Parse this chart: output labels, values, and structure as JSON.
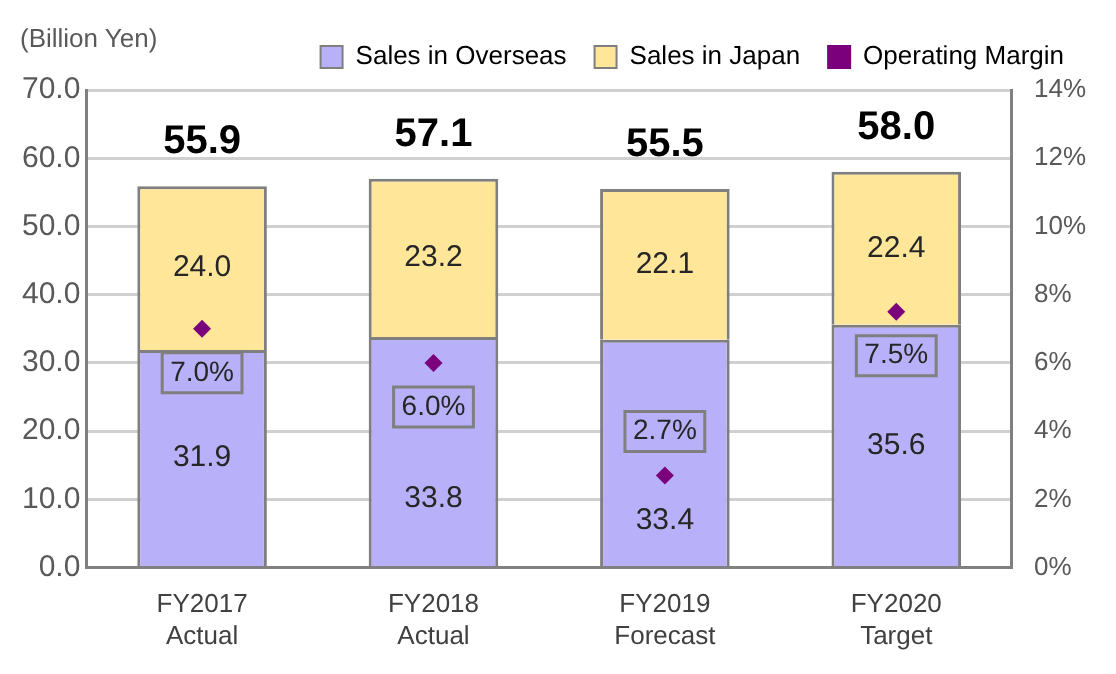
{
  "chart_data": {
    "type": "bar",
    "stacked": true,
    "ylabel": "(Billion Yen)",
    "categories": [
      "FY2017\nActual",
      "FY2018\nActual",
      "FY2019\nForecast",
      "FY2020\nTarget"
    ],
    "series": [
      {
        "name": "Sales in Overseas",
        "color": "#b8b0f8",
        "values": [
          31.9,
          33.8,
          33.4,
          35.6
        ],
        "value_labels": [
          "31.9",
          "33.8",
          "33.4",
          "35.6"
        ]
      },
      {
        "name": "Sales in Japan",
        "color": "#ffe699",
        "values": [
          24.0,
          23.2,
          22.1,
          22.4
        ],
        "value_labels": [
          "24.0",
          "23.2",
          "22.1",
          "22.4"
        ]
      },
      {
        "name": "Operating Margin",
        "type": "scatter",
        "axis": "y2",
        "color": "#7b007b",
        "marker": "diamond",
        "values": [
          7.0,
          6.0,
          2.7,
          7.5
        ],
        "value_labels": [
          "7.0%",
          "6.0%",
          "2.7%",
          "7.5%"
        ]
      }
    ],
    "totals": [
      "55.9",
      "57.1",
      "55.5",
      "58.0"
    ],
    "ylim": [
      0,
      70
    ],
    "yticks": [
      {
        "value": 0,
        "label": "0.0"
      },
      {
        "value": 10,
        "label": "10.0"
      },
      {
        "value": 20,
        "label": "20.0"
      },
      {
        "value": 30,
        "label": "30.0"
      },
      {
        "value": 40,
        "label": "40.0"
      },
      {
        "value": 50,
        "label": "50.0"
      },
      {
        "value": 60,
        "label": "60.0"
      },
      {
        "value": 70,
        "label": "70.0"
      }
    ],
    "y2lim": [
      0,
      14
    ],
    "y2ticks": [
      {
        "value": 0,
        "label": "0%"
      },
      {
        "value": 2,
        "label": "2%"
      },
      {
        "value": 4,
        "label": "4%"
      },
      {
        "value": 6,
        "label": "6%"
      },
      {
        "value": 8,
        "label": "8%"
      },
      {
        "value": 10,
        "label": "10%"
      },
      {
        "value": 12,
        "label": "12%"
      },
      {
        "value": 14,
        "label": "14%"
      }
    ],
    "grid": "y",
    "legend": "top"
  }
}
